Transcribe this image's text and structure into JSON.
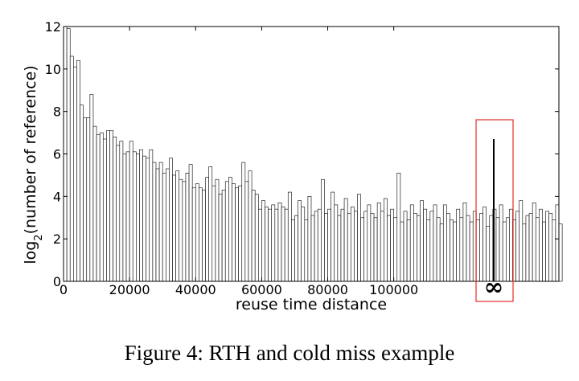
{
  "caption": "Figure 4: RTH and cold miss example",
  "chart_data": {
    "type": "bar",
    "xlabel": "reuse time distance",
    "ylabel_main": "log",
    "ylabel_sub": "2",
    "ylabel_rest": "(number of reference)",
    "xlim": [
      0,
      150000
    ],
    "ylim": [
      0,
      12
    ],
    "xticks": [
      0,
      20000,
      40000,
      60000,
      80000,
      100000
    ],
    "xtick_labels": [
      "0",
      "20000",
      "40000",
      "60000",
      "80000",
      "100000"
    ],
    "yticks": [
      0,
      2,
      4,
      6,
      8,
      10,
      12
    ],
    "ytick_labels": [
      "0",
      "2",
      "4",
      "6",
      "8",
      "10",
      "12"
    ],
    "bin_width": 1000,
    "values": [
      12,
      11.9,
      10.6,
      10.1,
      10.4,
      8.3,
      7.7,
      7.7,
      8.8,
      7.3,
      6.9,
      7.0,
      6.7,
      7.1,
      7.1,
      6.8,
      6.4,
      6.6,
      6.0,
      6.1,
      6.6,
      6.1,
      6.0,
      6.2,
      5.9,
      5.8,
      6.2,
      5.6,
      5.3,
      5.6,
      5.1,
      5.3,
      5.8,
      5.0,
      5.2,
      4.8,
      4.7,
      5.1,
      5.5,
      4.4,
      4.6,
      4.4,
      4.3,
      4.9,
      5.4,
      4.5,
      4.8,
      4.1,
      4.3,
      4.7,
      4.9,
      4.6,
      4.4,
      4.5,
      5.6,
      4.7,
      5.2,
      4.3,
      4.1,
      3.4,
      3.8,
      3.5,
      3.4,
      3.6,
      3.4,
      3.7,
      3.5,
      3.4,
      4.2,
      2.9,
      3.1,
      3.8,
      3.5,
      2.9,
      4.0,
      3.1,
      3.3,
      3.4,
      4.8,
      3.2,
      3.4,
      4.2,
      3.6,
      3.1,
      3.4,
      3.9,
      3.2,
      3.5,
      3.3,
      4.1,
      3.0,
      3.3,
      3.6,
      3.2,
      3.0,
      3.7,
      3.3,
      3.9,
      3.1,
      3.4,
      3.0,
      5.1,
      2.8,
      3.3,
      2.9,
      3.6,
      3.2,
      3.1,
      3.8,
      3.4,
      2.9,
      3.3,
      3.6,
      3.0,
      2.7,
      3.6,
      3.2,
      2.9,
      2.8,
      3.4,
      3.0,
      3.7,
      3.1,
      2.8,
      3.3,
      2.9,
      3.2,
      3.5,
      2.6,
      3.1,
      3.4,
      3.0,
      3.6,
      2.8,
      3.0,
      3.4,
      2.9,
      3.3,
      3.8,
      2.7,
      3.1,
      3.2,
      3.7,
      3.0,
      3.4,
      2.8,
      3.3,
      3.2,
      2.9,
      3.6,
      2.7
    ],
    "infinity_value": 6.7,
    "infinity_label": "∞"
  }
}
